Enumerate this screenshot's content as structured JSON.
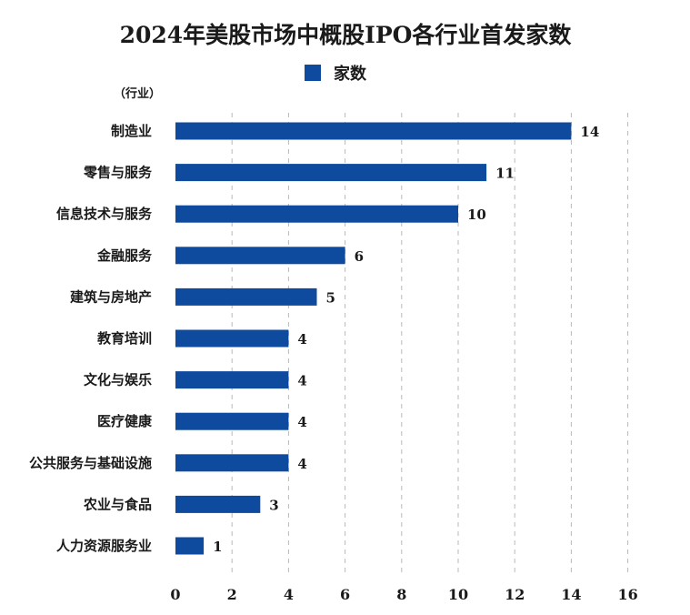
{
  "chart_data": {
    "type": "bar",
    "orientation": "horizontal",
    "title": "2024年美股市场中概股IPO各行业首发家数",
    "ylabel": "（行业）",
    "xlabel": "",
    "categories": [
      "制造业",
      "零售与服务",
      "信息技术与服务",
      "金融服务",
      "建筑与房地产",
      "教育培训",
      "文化与娱乐",
      "医疗健康",
      "公共服务与基础设施",
      "农业与食品",
      "人力资源服务业"
    ],
    "series": [
      {
        "name": "家数",
        "values": [
          14,
          11,
          10,
          6,
          5,
          4,
          4,
          4,
          4,
          3,
          1
        ]
      }
    ],
    "xlim": [
      0,
      16
    ],
    "xticks": [
      0,
      2,
      4,
      6,
      8,
      10,
      12,
      14,
      16
    ],
    "grid": "vertical-dashed",
    "legend_position": "top-center",
    "colors": {
      "bar": "#0e4a9e",
      "grid": "#b8b8b8"
    }
  }
}
